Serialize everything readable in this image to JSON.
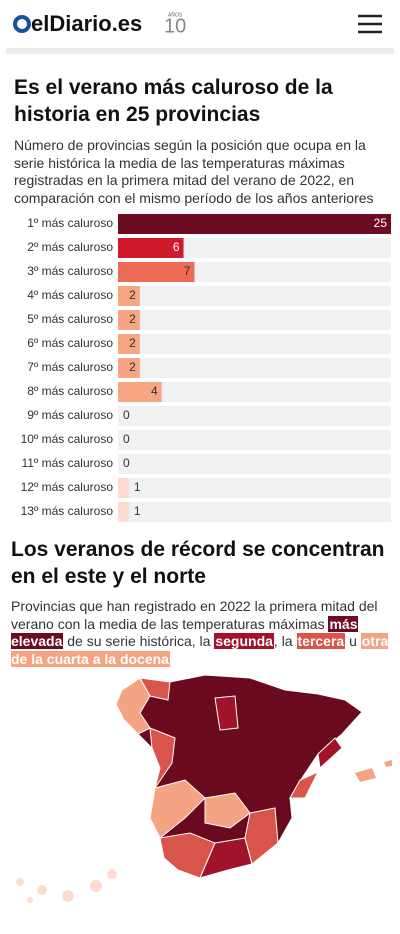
{
  "header": {
    "logo": "elDiario.es",
    "anniversary_small": "AÑOS",
    "anniversary_number": "10"
  },
  "chart_data": {
    "type": "bar",
    "orientation": "horizontal",
    "title": "Es el verano más caluroso de la historia en 25 provincias",
    "subtitle": "Número de provincias según la posición que ocupa en la serie histórica la media de las temperaturas máximas registradas en la primera mitad del verano de 2022, en comparación con el mismo período de los años anteriores",
    "categories": [
      "1º más caluroso",
      "2º más caluroso",
      "3º más caluroso",
      "4º más caluroso",
      "5º más caluroso",
      "6º más caluroso",
      "7º más caluroso",
      "8º más caluroso",
      "9º más caluroso",
      "10º más caluroso",
      "11º más caluroso",
      "12º más caluroso",
      "13º más caluroso"
    ],
    "values": [
      25,
      6,
      7,
      2,
      2,
      2,
      2,
      4,
      0,
      0,
      0,
      1,
      1
    ],
    "colors": [
      "#6e0a22",
      "#d0182f",
      "#ef6a55",
      "#f7a582",
      "#f7a582",
      "#f7a582",
      "#f7a582",
      "#f7a582",
      "#f7a582",
      "#f7a582",
      "#f7a582",
      "#fcdccf",
      "#fcdccf"
    ],
    "xlim": [
      0,
      25
    ]
  },
  "map_section": {
    "title": "Los veranos de récord se concentran en el este y el norte",
    "subtitle_parts": [
      "Provincias que han registrado en 2022 la primera mitad del verano con la media de las temperaturas máximas ",
      "más elevada",
      " de su serie histórica, la ",
      "segunda",
      ", la ",
      "tercera",
      " u ",
      "otra de la cuarta a la docena"
    ]
  }
}
